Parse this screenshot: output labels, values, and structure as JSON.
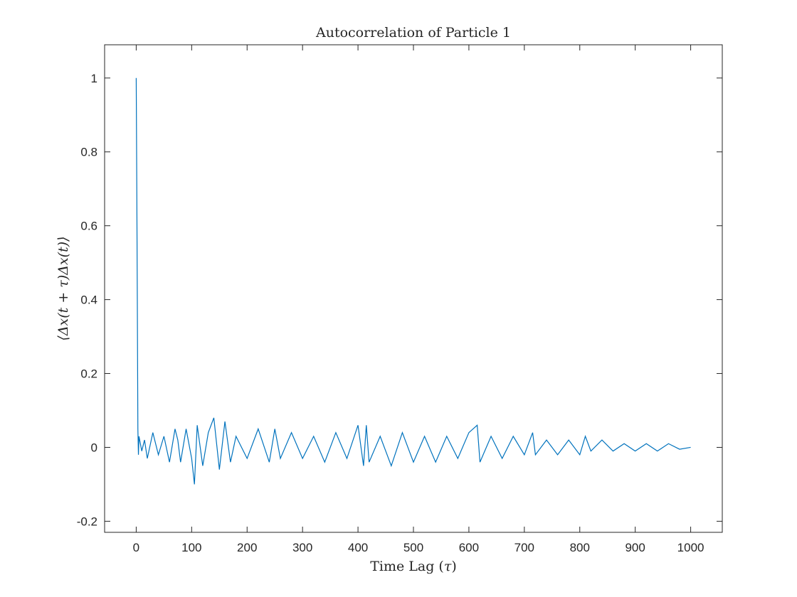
{
  "chart_data": {
    "type": "line",
    "title": "Autocorrelation of Particle 1",
    "xlabel": {
      "text": "Time Lag (",
      "symbol": "τ",
      "suffix": ")"
    },
    "ylabel": {
      "text": "⟨Δx(t + τ)Δx(t)⟩"
    },
    "xlim": [
      -57,
      1057
    ],
    "ylim": [
      -0.23,
      1.09
    ],
    "xticks": [
      0,
      100,
      200,
      300,
      400,
      500,
      600,
      700,
      800,
      900,
      1000
    ],
    "yticks": [
      -0.2,
      0,
      0.2,
      0.4,
      0.6,
      0.8,
      1
    ],
    "ytick_labels": [
      "-0.2",
      "0",
      "0.2",
      "0.4",
      "0.6",
      "0.8",
      "1"
    ],
    "grid": false,
    "series": [
      {
        "color": "#0072BD",
        "x": [
          0,
          1,
          2,
          3,
          4,
          5,
          10,
          15,
          20,
          30,
          40,
          50,
          60,
          70,
          75,
          80,
          90,
          100,
          105,
          110,
          120,
          130,
          140,
          150,
          160,
          170,
          180,
          200,
          220,
          240,
          250,
          260,
          280,
          300,
          320,
          340,
          360,
          380,
          400,
          410,
          415,
          420,
          440,
          460,
          480,
          500,
          520,
          540,
          560,
          580,
          600,
          615,
          620,
          640,
          660,
          680,
          700,
          715,
          720,
          740,
          760,
          780,
          800,
          810,
          820,
          840,
          860,
          880,
          900,
          920,
          940,
          960,
          980,
          1000
        ],
        "y": [
          1.0,
          0.72,
          0.4,
          0.05,
          -0.02,
          0.03,
          -0.01,
          0.02,
          -0.03,
          0.04,
          -0.02,
          0.03,
          -0.04,
          0.05,
          0.02,
          -0.04,
          0.05,
          -0.03,
          -0.1,
          0.06,
          -0.05,
          0.04,
          0.08,
          -0.06,
          0.07,
          -0.04,
          0.03,
          -0.03,
          0.05,
          -0.04,
          0.05,
          -0.03,
          0.04,
          -0.03,
          0.03,
          -0.04,
          0.04,
          -0.03,
          0.06,
          -0.05,
          0.06,
          -0.04,
          0.03,
          -0.05,
          0.04,
          -0.04,
          0.03,
          -0.04,
          0.03,
          -0.03,
          0.04,
          0.06,
          -0.04,
          0.03,
          -0.03,
          0.03,
          -0.02,
          0.04,
          -0.02,
          0.02,
          -0.02,
          0.02,
          -0.02,
          0.03,
          -0.01,
          0.02,
          -0.01,
          0.01,
          -0.01,
          0.01,
          -0.01,
          0.01,
          -0.005,
          0.0
        ]
      }
    ]
  }
}
